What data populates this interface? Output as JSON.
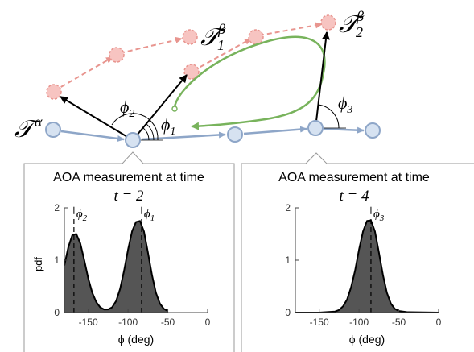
{
  "labels": {
    "tau_alpha": "𝒯",
    "tau_alpha_sup": "α",
    "tau_1": "𝒯",
    "tau_1_sub": "1",
    "tau_1_sup": "β",
    "tau_2": "𝒯",
    "tau_2_sub": "2",
    "tau_2_sup": "β",
    "phi_1": "ϕ",
    "phi_1_sub": "1",
    "phi_2": "ϕ",
    "phi_2_sub": "2",
    "phi_3": "ϕ",
    "phi_3_sub": "3"
  },
  "colors": {
    "alpha_track": "#8ea6c8",
    "alpha_node_fill": "#d6e2f1",
    "beta_track": "#e8958f",
    "beta_node_fill": "#f7c4c1",
    "loop": "#78b35c",
    "pdf_fill": "#555555"
  },
  "panels": [
    {
      "title_line1": "AOA measurement at time",
      "title_line2": "t = 2",
      "chart_data": {
        "type": "area",
        "x": [
          -180,
          -175,
          -170,
          -165,
          -160,
          -155,
          -150,
          -145,
          -140,
          -135,
          -130,
          -125,
          -120,
          -115,
          -110,
          -105,
          -100,
          -95,
          -90,
          -85,
          -80,
          -75,
          -70,
          -65,
          -60,
          -55,
          -50
        ],
        "y": [
          0.9,
          1.25,
          1.48,
          1.5,
          1.32,
          1.0,
          0.65,
          0.38,
          0.2,
          0.1,
          0.06,
          0.06,
          0.1,
          0.22,
          0.45,
          0.8,
          1.2,
          1.55,
          1.73,
          1.75,
          1.55,
          1.15,
          0.72,
          0.38,
          0.17,
          0.07,
          0.03
        ],
        "xlabel": "ϕ (deg)",
        "ylabel": "pdf",
        "xlim": [
          -180,
          0
        ],
        "ylim": [
          0,
          2
        ],
        "xticks": [
          -150,
          -100,
          -50,
          0
        ],
        "yticks": [
          0,
          1,
          2
        ],
        "annotations": [
          {
            "x": -168,
            "label": "ϕ",
            "sub": "2"
          },
          {
            "x": -83,
            "label": "ϕ",
            "sub": "1"
          }
        ]
      }
    },
    {
      "title_line1": "AOA measurement at time",
      "title_line2": "t = 4",
      "chart_data": {
        "type": "area",
        "x": [
          -180,
          -150,
          -130,
          -125,
          -120,
          -115,
          -110,
          -105,
          -100,
          -95,
          -90,
          -85,
          -80,
          -75,
          -70,
          -65,
          -60,
          -55,
          -50,
          -40,
          0
        ],
        "y": [
          0,
          0,
          0.02,
          0.05,
          0.12,
          0.25,
          0.48,
          0.8,
          1.2,
          1.55,
          1.75,
          1.76,
          1.55,
          1.15,
          0.72,
          0.38,
          0.17,
          0.07,
          0.03,
          0.01,
          0
        ],
        "xlabel": "ϕ (deg)",
        "ylabel": "",
        "xlim": [
          -180,
          0
        ],
        "ylim": [
          0,
          2
        ],
        "xticks": [
          -150,
          -100,
          -50,
          0
        ],
        "yticks": [
          0,
          1,
          2
        ],
        "annotations": [
          {
            "x": -85,
            "label": "ϕ",
            "sub": "3"
          }
        ]
      }
    }
  ]
}
